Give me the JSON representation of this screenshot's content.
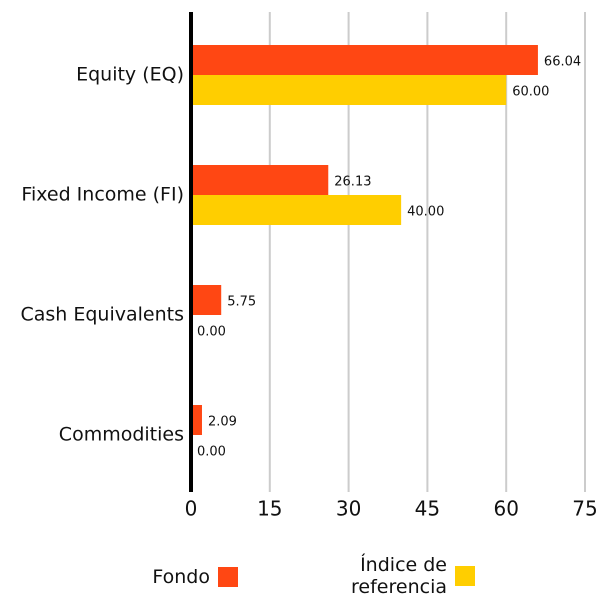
{
  "chart_data": {
    "type": "bar",
    "orientation": "horizontal",
    "categories": [
      "Equity (EQ)",
      "Fixed Income (FI)",
      "Cash Equivalents",
      "Commodities"
    ],
    "series": [
      {
        "name": "Fondo",
        "color": "#ff4713",
        "values": [
          66.04,
          26.13,
          5.75,
          2.09
        ],
        "value_labels": [
          "66.04",
          "26.13",
          "5.75",
          "2.09"
        ]
      },
      {
        "name": "Índice de referencia",
        "color": "#ffce00",
        "values": [
          60,
          40,
          0,
          0
        ],
        "value_labels": [
          "60.00",
          "40.00",
          "0.00",
          "0.00"
        ]
      }
    ],
    "xlim": [
      0,
      75
    ],
    "xticks": [
      0,
      15,
      30,
      45,
      60,
      75
    ],
    "grid": true
  }
}
